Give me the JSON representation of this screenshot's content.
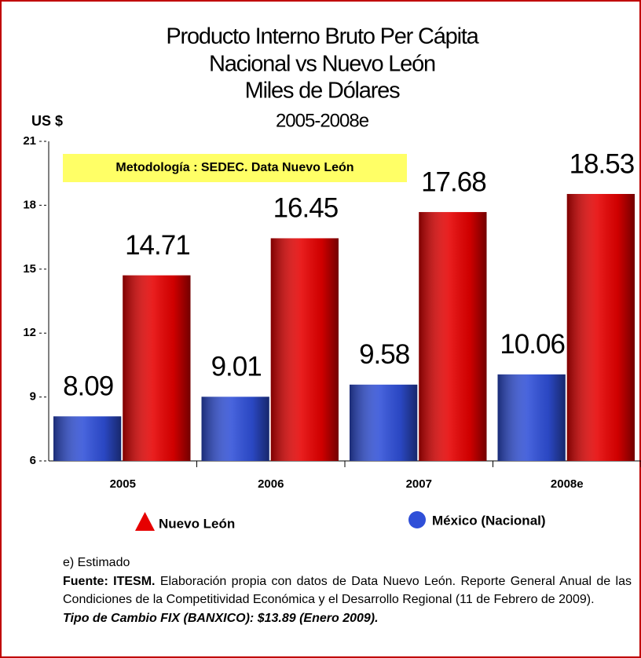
{
  "chart_data": {
    "type": "bar",
    "title": [
      "Producto Interno Bruto Per Cápita",
      "Nacional vs Nuevo León",
      "Miles de Dólares"
    ],
    "subtitle": "2005-2008e",
    "ylabel": "US $",
    "annotation": "Metodología : SEDEC. Data Nuevo León",
    "categories": [
      "2005",
      "2006",
      "2007",
      "2008e"
    ],
    "series": [
      {
        "name": "México (Nacional)",
        "color": "#2f4fd8",
        "marker": "circle",
        "values": [
          8.09,
          9.01,
          9.58,
          10.06
        ]
      },
      {
        "name": "Nuevo León",
        "color": "#e60000",
        "marker": "triangle",
        "values": [
          14.71,
          16.45,
          17.68,
          18.53
        ]
      }
    ],
    "ylim": [
      6,
      21
    ],
    "yticks": [
      6,
      9,
      12,
      15,
      18,
      21
    ],
    "grid": false,
    "footnote": {
      "estimate": "e) Estimado",
      "source_label": "Fuente: ITESM.",
      "source_text": " Elaboración propia con datos de Data Nuevo León. Reporte General Anual de las Condiciones de la Competitividad Económica y el Desarrollo Regional (11 de Febrero de 2009).",
      "exchange": "Tipo de Cambio FIX (BANXICO): $13.89 (Enero 2009)."
    }
  }
}
